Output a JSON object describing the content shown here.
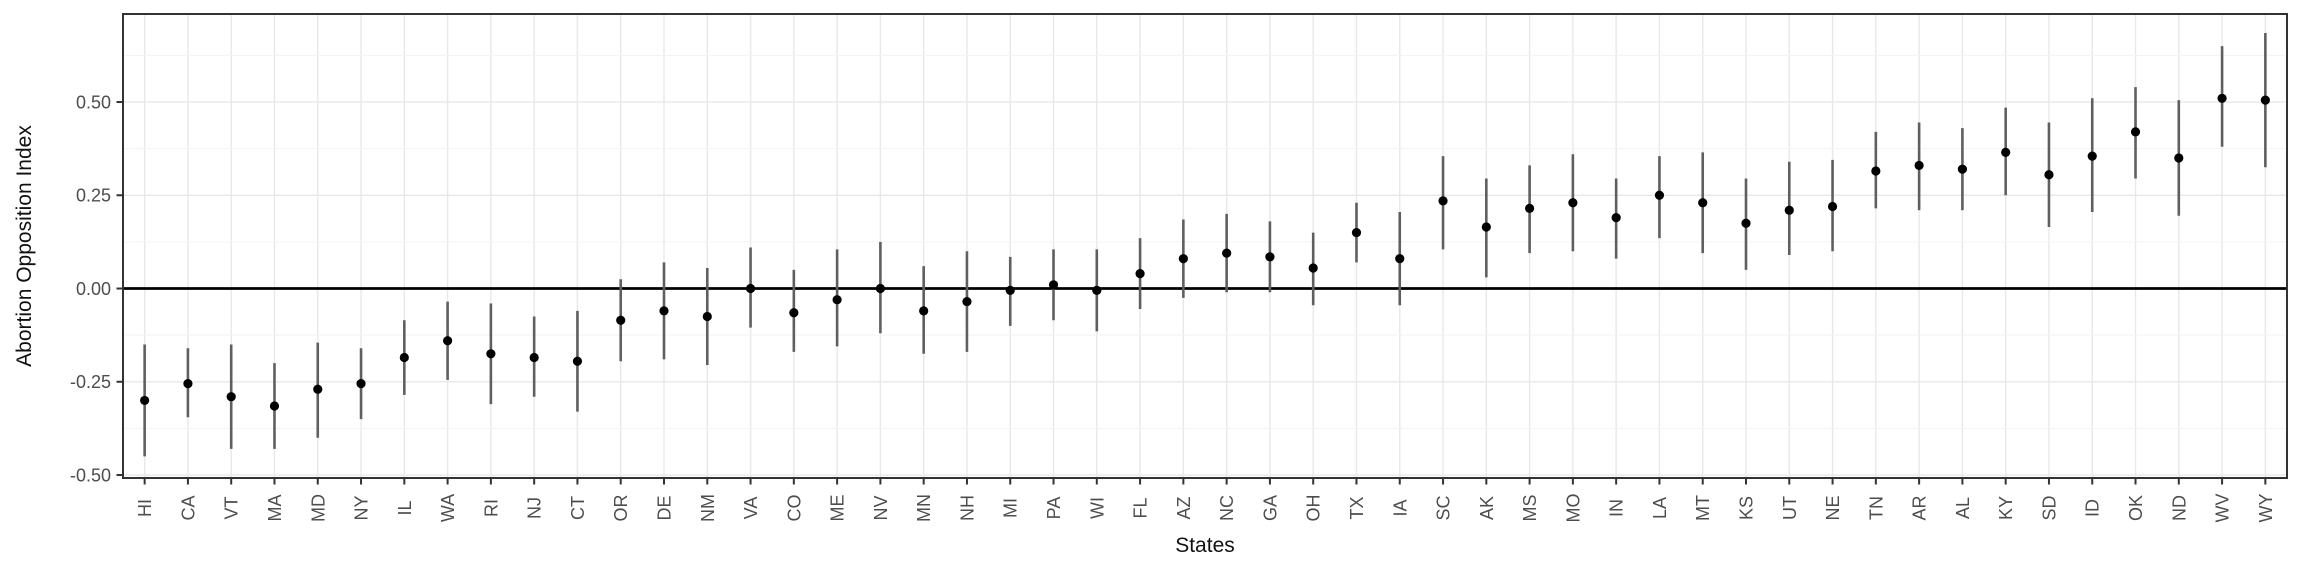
{
  "chart_data": {
    "type": "scatter",
    "subtype": "pointrange",
    "title": "",
    "xlabel": "States",
    "ylabel": "Abortion Opposition Index",
    "ylim": [
      -0.508,
      0.736
    ],
    "yticks": [
      0.5,
      0.25,
      0.0,
      -0.25,
      -0.5
    ],
    "ytick_labels": [
      "0.50",
      "0.25",
      "0.00",
      "-0.25",
      "-0.50"
    ],
    "ytick_minor_step": 0.125,
    "zero_line": 0.0,
    "grid": true,
    "legend": false,
    "categories": [
      "HI",
      "CA",
      "VT",
      "MA",
      "MD",
      "NY",
      "IL",
      "WA",
      "RI",
      "NJ",
      "CT",
      "OR",
      "DE",
      "NM",
      "VA",
      "CO",
      "ME",
      "NV",
      "MN",
      "NH",
      "MI",
      "PA",
      "WI",
      "FL",
      "AZ",
      "NC",
      "GA",
      "OH",
      "TX",
      "IA",
      "SC",
      "AK",
      "MS",
      "MO",
      "IN",
      "LA",
      "MT",
      "KS",
      "UT",
      "NE",
      "TN",
      "AR",
      "AL",
      "KY",
      "SD",
      "ID",
      "OK",
      "ND",
      "WV",
      "WY"
    ],
    "series": [
      {
        "name": "estimate",
        "values": [
          -0.3,
          -0.255,
          -0.29,
          -0.315,
          -0.27,
          -0.255,
          -0.185,
          -0.14,
          -0.175,
          -0.185,
          -0.195,
          -0.085,
          -0.06,
          -0.075,
          0.0,
          -0.065,
          -0.03,
          0.0,
          -0.06,
          -0.035,
          -0.005,
          0.01,
          -0.005,
          0.04,
          0.08,
          0.095,
          0.085,
          0.055,
          0.15,
          0.08,
          0.235,
          0.165,
          0.215,
          0.23,
          0.19,
          0.25,
          0.23,
          0.175,
          0.21,
          0.22,
          0.315,
          0.33,
          0.32,
          0.365,
          0.305,
          0.355,
          0.42,
          0.35,
          0.51,
          0.505
        ]
      },
      {
        "name": "ci_lower",
        "values": [
          -0.45,
          -0.345,
          -0.43,
          -0.43,
          -0.4,
          -0.35,
          -0.285,
          -0.245,
          -0.31,
          -0.29,
          -0.33,
          -0.195,
          -0.19,
          -0.205,
          -0.105,
          -0.17,
          -0.155,
          -0.12,
          -0.175,
          -0.17,
          -0.1,
          -0.085,
          -0.115,
          -0.055,
          -0.025,
          -0.01,
          -0.01,
          -0.045,
          0.07,
          -0.045,
          0.105,
          0.03,
          0.095,
          0.1,
          0.08,
          0.135,
          0.095,
          0.05,
          0.09,
          0.1,
          0.215,
          0.21,
          0.21,
          0.25,
          0.165,
          0.205,
          0.295,
          0.195,
          0.38,
          0.325
        ]
      },
      {
        "name": "ci_upper",
        "values": [
          -0.15,
          -0.16,
          -0.15,
          -0.2,
          -0.145,
          -0.16,
          -0.085,
          -0.035,
          -0.04,
          -0.075,
          -0.06,
          0.025,
          0.07,
          0.055,
          0.11,
          0.05,
          0.105,
          0.125,
          0.06,
          0.1,
          0.085,
          0.105,
          0.105,
          0.135,
          0.185,
          0.2,
          0.18,
          0.15,
          0.23,
          0.205,
          0.355,
          0.295,
          0.33,
          0.36,
          0.295,
          0.355,
          0.365,
          0.295,
          0.34,
          0.345,
          0.42,
          0.445,
          0.43,
          0.485,
          0.445,
          0.51,
          0.54,
          0.505,
          0.65,
          0.685
        ]
      }
    ]
  },
  "colors": {
    "background": "#ffffff",
    "panel_background": "#ffffff",
    "panel_border": "#333333",
    "grid_major": "#e8e8e8",
    "grid_minor": "#f3f3f3",
    "zero_line": "#000000",
    "error_bar": "#5f5f5f",
    "point": "#000000",
    "axis_text": "#4d4d4d",
    "axis_title": "#111111",
    "tick_mark": "#333333"
  }
}
